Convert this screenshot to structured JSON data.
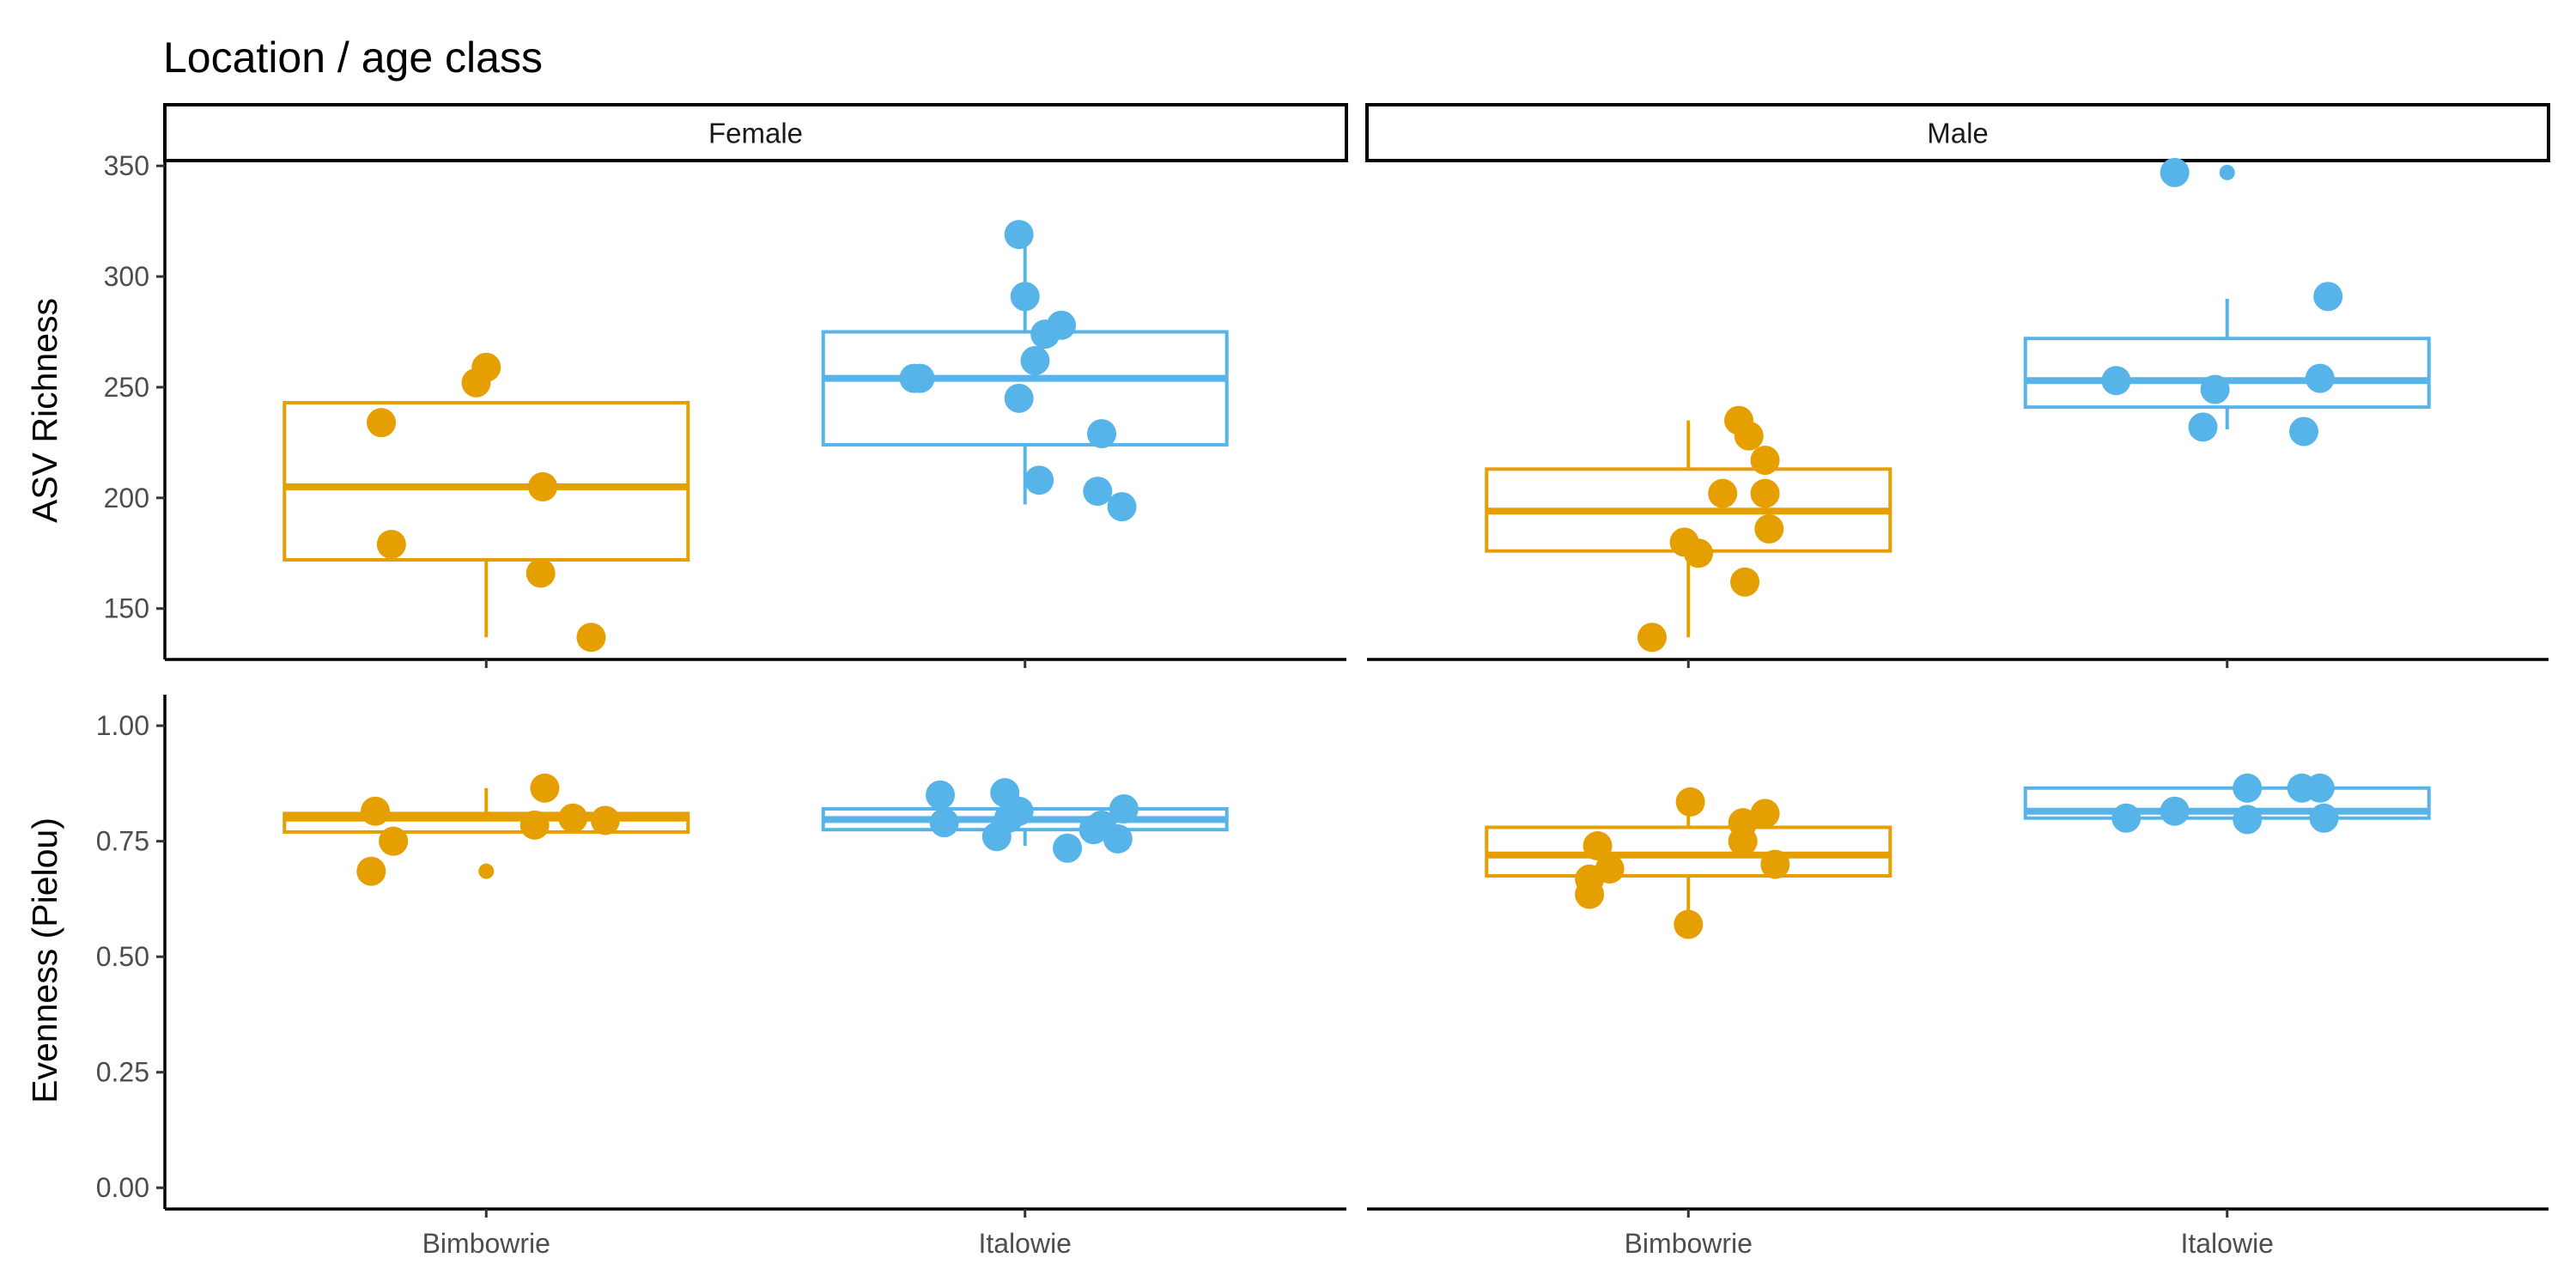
{
  "title": "Location / age class",
  "chart_data": {
    "type": "boxplot",
    "title": "Location / age class",
    "facet_columns": [
      "Female",
      "Male"
    ],
    "categories": [
      "Bimbowrie",
      "Italowie"
    ],
    "colors": {
      "Bimbowrie": "#E69F00",
      "Italowie": "#56B4E9"
    },
    "grid": false,
    "legend": "none",
    "panels": [
      {
        "row": "richness",
        "ylabel": "ASV Richness",
        "ylim": [
          127,
          352
        ],
        "yticks": [
          150,
          200,
          250,
          300,
          350
        ],
        "ytick_labels": [
          "150",
          "200",
          "250",
          "300",
          "350"
        ],
        "groups": [
          {
            "facet": "Female",
            "category": "Bimbowrie",
            "box": {
              "min": 137,
              "q1": 172,
              "median": 205,
              "q3": 243,
              "max": 243
            },
            "outliers": [],
            "points": [
              [
                -0.52,
                234
              ],
              [
                -0.47,
                179
              ],
              [
                -0.05,
                252
              ],
              [
                0.0,
                259
              ],
              [
                0.28,
                205
              ],
              [
                0.27,
                166
              ],
              [
                0.52,
                137
              ]
            ]
          },
          {
            "facet": "Female",
            "category": "Italowie",
            "box": {
              "min": 197,
              "q1": 224,
              "median": 254,
              "q3": 275,
              "max": 319
            },
            "outliers": [],
            "points": [
              [
                -0.55,
                254
              ],
              [
                -0.52,
                254
              ],
              [
                -0.03,
                319
              ],
              [
                0.0,
                291
              ],
              [
                -0.03,
                245
              ],
              [
                0.05,
                262
              ],
              [
                0.1,
                274
              ],
              [
                0.18,
                278
              ],
              [
                0.07,
                208
              ],
              [
                0.38,
                229
              ],
              [
                0.36,
                203
              ],
              [
                0.48,
                196
              ]
            ]
          },
          {
            "facet": "Male",
            "category": "Bimbowrie",
            "box": {
              "min": 137,
              "q1": 176,
              "median": 194,
              "q3": 213,
              "max": 235
            },
            "outliers": [],
            "points": [
              [
                -0.18,
                137
              ],
              [
                -0.02,
                180
              ],
              [
                0.05,
                175
              ],
              [
                0.17,
                202
              ],
              [
                0.25,
                235
              ],
              [
                0.3,
                228
              ],
              [
                0.38,
                217
              ],
              [
                0.38,
                202
              ],
              [
                0.4,
                186
              ],
              [
                0.28,
                162
              ]
            ]
          },
          {
            "facet": "Male",
            "category": "Italowie",
            "box": {
              "min": 231,
              "q1": 241,
              "median": 253,
              "q3": 272,
              "max": 290
            },
            "outliers": [
              347
            ],
            "points": [
              [
                -0.55,
                253
              ],
              [
                -0.26,
                347
              ],
              [
                -0.12,
                232
              ],
              [
                -0.06,
                249
              ],
              [
                0.38,
                230
              ],
              [
                0.46,
                254
              ],
              [
                0.5,
                291
              ]
            ]
          }
        ]
      },
      {
        "row": "evenness",
        "ylabel": "Evenness (Pielou)",
        "ylim": [
          -0.046,
          1.03
        ],
        "yticks": [
          0,
          0.25,
          0.5,
          0.75,
          1.0
        ],
        "ytick_labels": [
          "0.00",
          "0.25",
          "0.50",
          "0.75",
          "1.00"
        ],
        "groups": [
          {
            "facet": "Female",
            "category": "Bimbowrie",
            "box": {
              "min": 0.77,
              "q1": 0.77,
              "median": 0.8,
              "q3": 0.81,
              "max": 0.865
            },
            "outliers": [
              0.685
            ],
            "points": [
              [
                -0.57,
                0.685
              ],
              [
                -0.55,
                0.815
              ],
              [
                -0.46,
                0.75
              ],
              [
                0.24,
                0.785
              ],
              [
                0.29,
                0.865
              ],
              [
                0.43,
                0.8
              ],
              [
                0.59,
                0.795
              ]
            ]
          },
          {
            "facet": "Female",
            "category": "Italowie",
            "box": {
              "min": 0.74,
              "q1": 0.775,
              "median": 0.797,
              "q3": 0.82,
              "max": 0.84
            },
            "outliers": [],
            "points": [
              [
                -0.42,
                0.85
              ],
              [
                -0.4,
                0.79
              ],
              [
                -0.14,
                0.76
              ],
              [
                -0.1,
                0.855
              ],
              [
                -0.08,
                0.8
              ],
              [
                -0.03,
                0.815
              ],
              [
                0.21,
                0.735
              ],
              [
                0.34,
                0.775
              ],
              [
                0.38,
                0.785
              ],
              [
                0.46,
                0.755
              ],
              [
                0.49,
                0.82
              ]
            ]
          },
          {
            "facet": "Male",
            "category": "Bimbowrie",
            "box": {
              "min": 0.57,
              "q1": 0.675,
              "median": 0.72,
              "q3": 0.78,
              "max": 0.835
            },
            "outliers": [],
            "points": [
              [
                -0.49,
                0.668
              ],
              [
                -0.49,
                0.635
              ],
              [
                -0.45,
                0.74
              ],
              [
                -0.39,
                0.69
              ],
              [
                0.0,
                0.57
              ],
              [
                0.01,
                0.835
              ],
              [
                0.27,
                0.79
              ],
              [
                0.27,
                0.75
              ],
              [
                0.38,
                0.81
              ],
              [
                0.43,
                0.7
              ]
            ]
          },
          {
            "facet": "Male",
            "category": "Italowie",
            "box": {
              "min": 0.8,
              "q1": 0.8,
              "median": 0.815,
              "q3": 0.865,
              "max": 0.865
            },
            "outliers": [],
            "points": [
              [
                -0.5,
                0.8
              ],
              [
                -0.26,
                0.815
              ],
              [
                0.1,
                0.865
              ],
              [
                0.1,
                0.797
              ],
              [
                0.37,
                0.865
              ],
              [
                0.46,
                0.865
              ],
              [
                0.48,
                0.8
              ]
            ]
          }
        ]
      }
    ]
  }
}
